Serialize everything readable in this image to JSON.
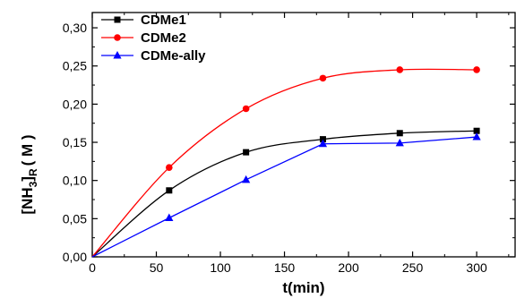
{
  "chart_data": {
    "type": "scatter",
    "title": "",
    "xlabel": "t(min)",
    "ylabel_main": "[NH",
    "ylabel_sub1": "3",
    "ylabel_mid": "]",
    "ylabel_sub2": "R",
    "ylabel_unit": "( M )",
    "xlim": [
      0,
      330
    ],
    "ylim": [
      0,
      0.32
    ],
    "x_ticks": [
      0,
      50,
      100,
      150,
      200,
      250,
      300
    ],
    "x_tick_labels": [
      "0",
      "50",
      "100",
      "150",
      "200",
      "250",
      "300"
    ],
    "y_ticks": [
      0,
      0.05,
      0.1,
      0.15,
      0.2,
      0.25,
      0.3
    ],
    "y_tick_labels": [
      "0,00",
      "0,05",
      "0,10",
      "0,15",
      "0,20",
      "0,25",
      "0,30"
    ],
    "legend_position": "top-left",
    "grid": false,
    "series": [
      {
        "name": "CDMe1",
        "color": "#000000",
        "marker": "square",
        "x": [
          0,
          60,
          120,
          180,
          240,
          300
        ],
        "y": [
          0.0,
          0.087,
          0.137,
          0.154,
          0.162,
          0.165
        ],
        "fit": "smooth"
      },
      {
        "name": "CDMe2",
        "color": "#ff0000",
        "marker": "circle",
        "x": [
          0,
          60,
          120,
          180,
          240,
          300
        ],
        "y": [
          0.0,
          0.117,
          0.194,
          0.234,
          0.245,
          0.245
        ],
        "fit": "smooth"
      },
      {
        "name": "CDMe-ally",
        "color": "#0000ff",
        "marker": "triangle",
        "x": [
          0,
          60,
          120,
          180,
          240,
          300
        ],
        "y": [
          0.0,
          0.051,
          0.101,
          0.148,
          0.149,
          0.157
        ],
        "fit": "linear"
      }
    ]
  }
}
